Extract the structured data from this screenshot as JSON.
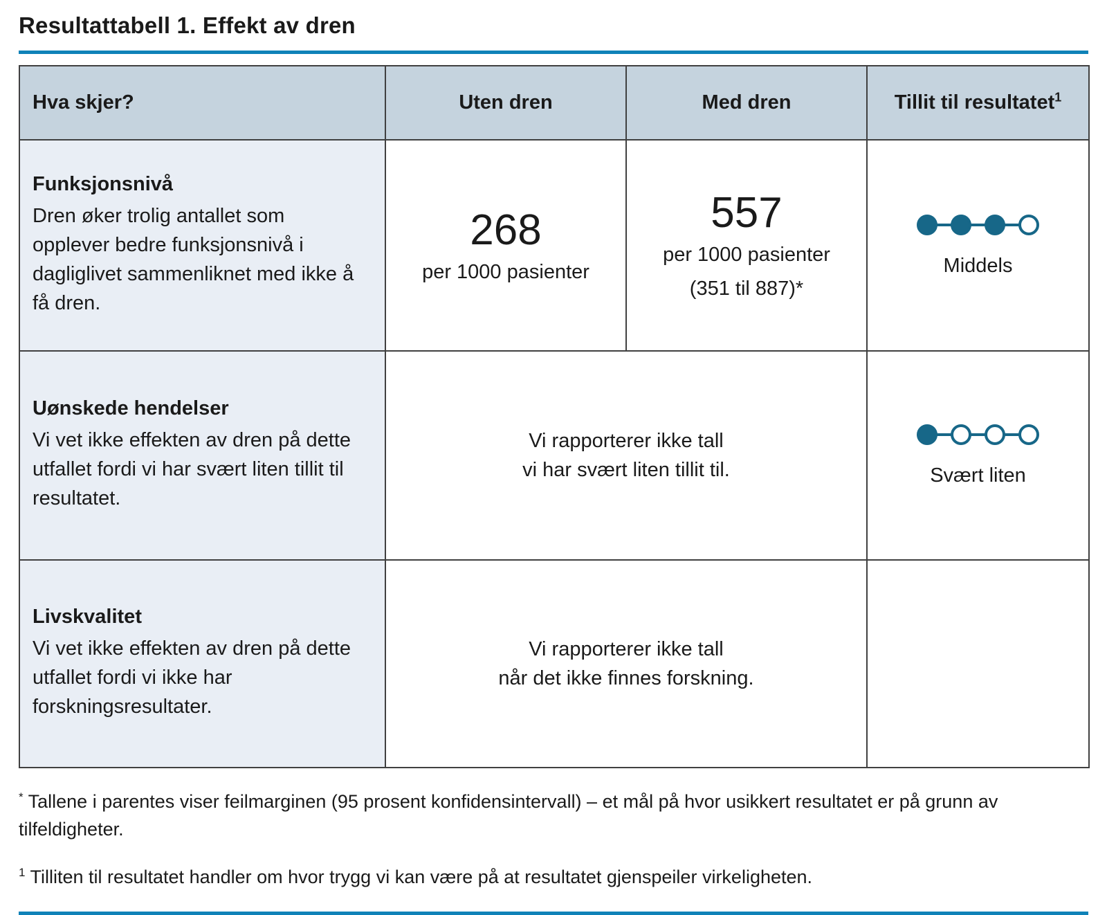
{
  "title": {
    "bold": "Resultattabell 1.",
    "regular": " Effekt av dren"
  },
  "colors": {
    "accent_rule_blue": "#0f82b8",
    "confidence_dot_teal": "#176788",
    "header_background": "#c5d3de",
    "outcome_column_background": "#e9eef5",
    "table_border": "#404040"
  },
  "table": {
    "headers": {
      "outcome": "Hva skjer?",
      "without": "Uten dren",
      "with": "Med dren",
      "confidence": "Tillit til resultatet",
      "confidence_superscript": "1"
    },
    "rows": [
      {
        "outcome_title": "Funksjonsnivå",
        "outcome_text": "Dren øker trolig antallet som opplever bedre funksjonsnivå i dagliglivet sammenliknet med ikke å få dren.",
        "without": {
          "value": "268",
          "unit": "per 1000 pasienter"
        },
        "with": {
          "value": "557",
          "unit": "per 1000 pasienter",
          "ci": "(351 til 887)*"
        },
        "confidence": {
          "level": "Middels",
          "filled_dots": 3,
          "total_dots": 4,
          "icon": "confidence-dots-3-of-4"
        }
      },
      {
        "outcome_title": "Uønskede hendelser",
        "outcome_text": "Vi vet ikke effekten av dren på dette utfallet fordi vi har svært liten tillit til resultatet.",
        "merged_note": "Vi rapporterer ikke tall\nvi har svært liten tillit til.",
        "confidence": {
          "level": "Svært liten",
          "filled_dots": 1,
          "total_dots": 4,
          "icon": "confidence-dots-1-of-4"
        }
      },
      {
        "outcome_title": "Livskvalitet",
        "outcome_text": "Vi vet ikke effekten av dren på dette utfallet fordi vi ikke har forskningsresultater.",
        "merged_note": "Vi rapporterer ikke tall\nnår det ikke finnes forskning.",
        "confidence": null
      }
    ]
  },
  "footnotes": [
    {
      "marker": "*",
      "text": " Tallene i parentes viser feilmarginen (95 prosent konfidensintervall) – et mål på hvor usikkert resultatet er på grunn av tilfeldigheter."
    },
    {
      "marker": "1",
      "text": " Tilliten til resultatet handler om hvor trygg vi kan være på at resultatet gjenspeiler virkeligheten."
    }
  ]
}
